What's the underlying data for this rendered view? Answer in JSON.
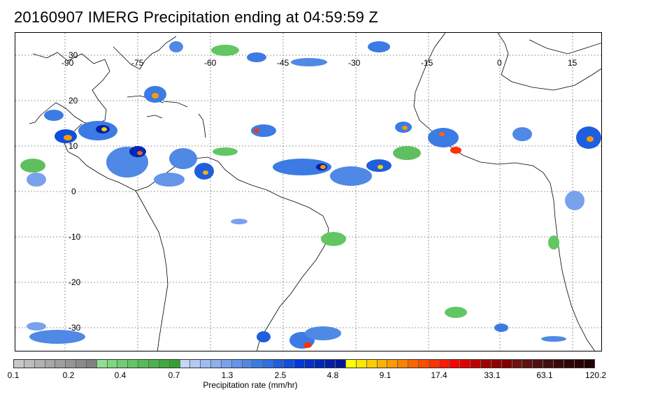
{
  "title": "20160907 IMERG Precipitation ending at 04:59:59 Z",
  "map": {
    "lon_labels": [
      "-90",
      "-75",
      "-60",
      "-45",
      "-30",
      "-15",
      "0",
      "15"
    ],
    "lat_labels": [
      "30",
      "20",
      "10",
      "0",
      "-10",
      "-20",
      "-30"
    ],
    "grid": true,
    "grid_style": "dotted"
  },
  "colorbar": {
    "tick_labels": [
      "0.1",
      "0.2",
      "0.4",
      "0.7",
      "1.3",
      "2.5",
      "4.8",
      "9.1",
      "17.4",
      "33.1",
      "63.1",
      "120.2"
    ],
    "label": "Precipitation rate (mm/hr)",
    "colors": [
      "#c8c8c8",
      "#bdbdbd",
      "#b2b2b2",
      "#a8a8a8",
      "#9e9e9e",
      "#949494",
      "#8a8a8a",
      "#808080",
      "#8ee08e",
      "#7fd87f",
      "#70cf70",
      "#62c662",
      "#56bd56",
      "#4ab44a",
      "#3eaa3e",
      "#33a033",
      "#c6d6f7",
      "#b3c9f5",
      "#9fbcf2",
      "#8bafef",
      "#78a2ec",
      "#6495e9",
      "#5088e6",
      "#3c7be3",
      "#2f6fe0",
      "#1f5fdd",
      "#0f4fdb",
      "#0038d8",
      "#0030c8",
      "#0028b8",
      "#0020a8",
      "#001898",
      "#ffff00",
      "#ffe600",
      "#ffcc00",
      "#ffb300",
      "#ff9900",
      "#ff8000",
      "#ff6600",
      "#ff4d00",
      "#ff3300",
      "#ff1a00",
      "#ff0000",
      "#e00000",
      "#c00000",
      "#a00000",
      "#900000",
      "#800000",
      "#701010",
      "#601010",
      "#501010",
      "#401010",
      "#3a0808",
      "#300505",
      "#280404",
      "#200303"
    ]
  }
}
